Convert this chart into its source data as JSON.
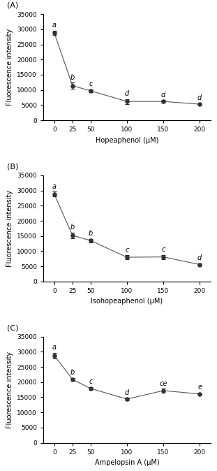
{
  "panels": [
    {
      "label": "(A)",
      "xlabel": "Hopeaphenol (μM)",
      "x": [
        0,
        25,
        50,
        100,
        150,
        200
      ],
      "y": [
        28800,
        11400,
        9700,
        6200,
        6200,
        5300
      ],
      "yerr": [
        700,
        1000,
        500,
        800,
        400,
        300
      ],
      "letters": [
        "a",
        "b",
        "c",
        "d",
        "d",
        "d"
      ],
      "ylim": [
        0,
        35000
      ],
      "yticks": [
        0,
        5000,
        10000,
        15000,
        20000,
        25000,
        30000,
        35000
      ]
    },
    {
      "label": "(B)",
      "xlabel": "Isohopeaphenol (μM)",
      "x": [
        0,
        25,
        50,
        100,
        150,
        200
      ],
      "y": [
        28800,
        15200,
        13500,
        8000,
        8100,
        5600
      ],
      "yerr": [
        800,
        1000,
        600,
        600,
        700,
        300
      ],
      "letters": [
        "a",
        "b",
        "b",
        "c",
        "c",
        "d"
      ],
      "ylim": [
        0,
        35000
      ],
      "yticks": [
        0,
        5000,
        10000,
        15000,
        20000,
        25000,
        30000,
        35000
      ]
    },
    {
      "label": "(C)",
      "xlabel": "Ampelopsin A (μM)",
      "x": [
        0,
        25,
        50,
        100,
        150,
        200
      ],
      "y": [
        28800,
        20900,
        17900,
        14400,
        17200,
        16100
      ],
      "yerr": [
        900,
        400,
        400,
        400,
        600,
        400
      ],
      "letters": [
        "a",
        "b",
        "c",
        "d",
        "ce",
        "e"
      ],
      "ylim": [
        0,
        35000
      ],
      "yticks": [
        0,
        5000,
        10000,
        15000,
        20000,
        25000,
        30000,
        35000
      ]
    }
  ],
  "ylabel": "Fluorescence intensity",
  "marker": "o",
  "markersize": 4,
  "linecolor": "#555555",
  "markercolor": "#222222",
  "markerfacecolor": "#333333",
  "fontsize_label": 7,
  "fontsize_letter": 7,
  "fontsize_tick": 6.5,
  "fontsize_panel": 8
}
